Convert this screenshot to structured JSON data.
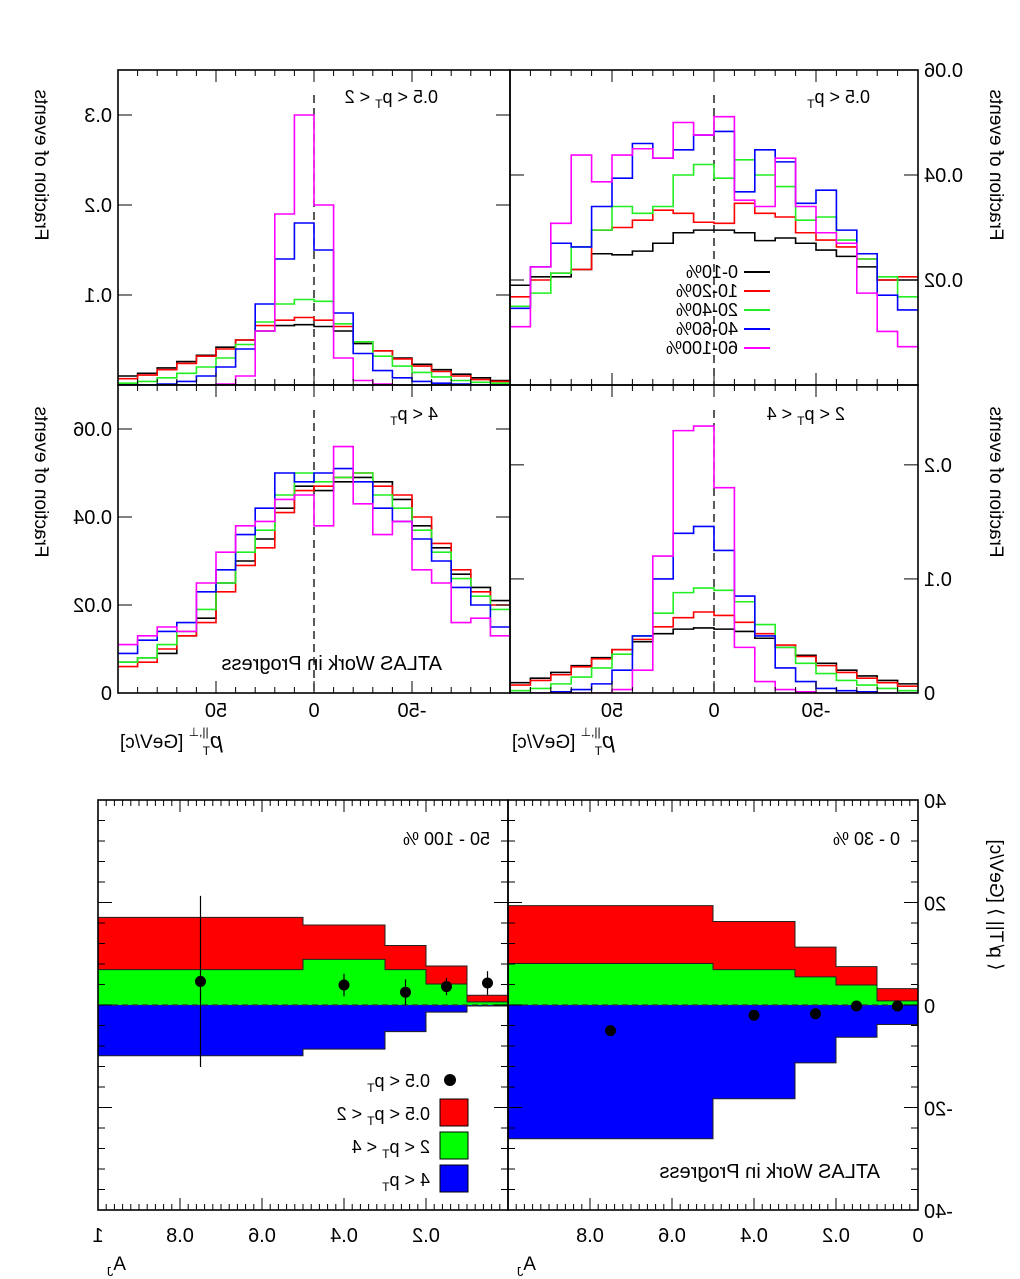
{
  "mirrored": true,
  "colors": {
    "0-10%": "#000000",
    "10-20%": "#ff0000",
    "20-40%": "#22ee22",
    "40-60%": "#0000ff",
    "60-100%": "#ff00ff",
    "band_red": "#ff0000",
    "band_green": "#00ff00",
    "band_blue": "#0000ff"
  },
  "watermark": "ATLAS Work in Progress",
  "top_xlabel": {
    "p": "p",
    "sub": "T",
    "sup": "||,⊥",
    "unit": " [GeV/c]"
  },
  "top_ylabel": "Fraction of events",
  "bottom_xlabel": {
    "a": "A",
    "sub": "J"
  },
  "bottom_ylabel": "⟨ p̸ T|| ⟩ [GeV/c]",
  "legend_top": [
    "0-10%",
    "10-20%",
    "20-40%",
    "40-60%",
    "60-100%"
  ],
  "legend_bottom": [
    {
      "marker": "point",
      "pre": "0.5 < p",
      "sub": "T",
      "post": ""
    },
    {
      "marker": "red",
      "pre": "0.5 < p",
      "sub": "T",
      "post": " < 2"
    },
    {
      "marker": "green",
      "pre": "2 < p",
      "sub": "T",
      "post": " < 4"
    },
    {
      "marker": "blue",
      "pre": "4 < p",
      "sub": "T",
      "post": ""
    }
  ],
  "chart_data": [
    {
      "type": "line",
      "style": "step",
      "label": {
        "pre": "0.5 < p",
        "sub": "T",
        "post": ""
      },
      "xlim": [
        -100,
        100
      ],
      "ylim": [
        0,
        0.06
      ],
      "xticks": [],
      "yticks": [
        "0.02",
        "0.04",
        "0.06"
      ],
      "x": [
        -95,
        -85,
        -75,
        -65,
        -55,
        -45,
        -35,
        -25,
        -15,
        -5,
        5,
        15,
        25,
        35,
        45,
        55,
        65,
        75,
        85,
        95
      ],
      "series": [
        {
          "name": "0-10%",
          "values": [
            0.02,
            0.02,
            0.0225,
            0.0245,
            0.0257,
            0.027,
            0.028,
            0.0275,
            0.029,
            0.0295,
            0.0295,
            0.029,
            0.027,
            0.0255,
            0.0248,
            0.025,
            0.022,
            0.0206,
            0.0206,
            0.019
          ]
        },
        {
          "name": "10-20%",
          "values": [
            0.0206,
            0.02,
            0.024,
            0.0263,
            0.0276,
            0.029,
            0.032,
            0.0327,
            0.0346,
            0.0308,
            0.031,
            0.0327,
            0.0333,
            0.0314,
            0.03,
            0.0295,
            0.022,
            0.0213,
            0.02,
            0.0168
          ]
        },
        {
          "name": "20-40%",
          "values": [
            0.0168,
            0.0206,
            0.024,
            0.0276,
            0.032,
            0.0314,
            0.0378,
            0.04,
            0.0429,
            0.0394,
            0.042,
            0.04,
            0.034,
            0.0327,
            0.034,
            0.0295,
            0.0263,
            0.0213,
            0.0175,
            0.015
          ]
        },
        {
          "name": "40-60%",
          "values": [
            0.0143,
            0.0171,
            0.025,
            0.0295,
            0.0371,
            0.0346,
            0.0425,
            0.0448,
            0.0368,
            0.0483,
            0.0476,
            0.0448,
            0.0432,
            0.046,
            0.0394,
            0.034,
            0.0263,
            0.027,
            0.0225,
            0.0146
          ]
        },
        {
          "name": "60-100%",
          "values": [
            0.0073,
            0.0102,
            0.0175,
            0.027,
            0.029,
            0.034,
            0.0432,
            0.034,
            0.0352,
            0.0511,
            0.0476,
            0.05,
            0.0432,
            0.045,
            0.0438,
            0.0387,
            0.0438,
            0.0308,
            0.0225,
            0.0111
          ]
        }
      ]
    },
    {
      "type": "line",
      "style": "step",
      "label": {
        "pre": "0.5 < p",
        "sub": "T",
        "post": " < 2"
      },
      "xlim": [
        -100,
        100
      ],
      "ylim": [
        0,
        0.35
      ],
      "xticks": [],
      "yticks": [
        "0.1",
        "0.2",
        "0.3"
      ],
      "x": [
        -95,
        -85,
        -75,
        -65,
        -55,
        -45,
        -35,
        -25,
        -15,
        -5,
        5,
        15,
        25,
        35,
        45,
        55,
        65,
        75,
        85,
        95
      ],
      "series": [
        {
          "name": "0-10%",
          "values": [
            0.005,
            0.008,
            0.012,
            0.017,
            0.023,
            0.03,
            0.038,
            0.046,
            0.06,
            0.065,
            0.067,
            0.066,
            0.06,
            0.05,
            0.042,
            0.033,
            0.026,
            0.019,
            0.013,
            0.01
          ]
        },
        {
          "name": "10-20%",
          "values": [
            0.004,
            0.006,
            0.01,
            0.015,
            0.021,
            0.029,
            0.038,
            0.048,
            0.065,
            0.072,
            0.075,
            0.072,
            0.066,
            0.05,
            0.04,
            0.032,
            0.024,
            0.017,
            0.011,
            0.007
          ]
        },
        {
          "name": "20-40%",
          "values": [
            0.002,
            0.003,
            0.005,
            0.009,
            0.014,
            0.021,
            0.032,
            0.048,
            0.068,
            0.093,
            0.095,
            0.09,
            0.07,
            0.045,
            0.03,
            0.02,
            0.013,
            0.008,
            0.004,
            0.002
          ]
        },
        {
          "name": "40-60%",
          "values": [
            0,
            0,
            0.001,
            0.002,
            0.004,
            0.008,
            0.016,
            0.035,
            0.08,
            0.15,
            0.18,
            0.14,
            0.09,
            0.04,
            0.02,
            0.01,
            0.004,
            0.001,
            0,
            0
          ]
        },
        {
          "name": "60-100%",
          "values": [
            0,
            0,
            0,
            0,
            0,
            0,
            0.001,
            0.005,
            0.03,
            0.2,
            0.3,
            0.19,
            0.06,
            0.01,
            0.001,
            0,
            0,
            0,
            0,
            0
          ]
        }
      ]
    },
    {
      "type": "line",
      "style": "step",
      "label": {
        "pre": "2 < p",
        "sub": "T",
        "post": " < 4"
      },
      "xlim": [
        -100,
        100
      ],
      "ylim": [
        0,
        0.27
      ],
      "xticks": [
        "-50",
        "0",
        "50"
      ],
      "yticks": [
        "0",
        "0.1",
        "0.2"
      ],
      "x": [
        -95,
        -85,
        -75,
        -65,
        -55,
        -45,
        -35,
        -25,
        -15,
        -5,
        5,
        15,
        25,
        35,
        45,
        55,
        65,
        75,
        85,
        95
      ],
      "series": [
        {
          "name": "0-10%",
          "values": [
            0.008,
            0.011,
            0.015,
            0.02,
            0.026,
            0.033,
            0.04,
            0.048,
            0.054,
            0.056,
            0.057,
            0.056,
            0.052,
            0.045,
            0.038,
            0.031,
            0.024,
            0.018,
            0.013,
            0.009
          ]
        },
        {
          "name": "10-20%",
          "values": [
            0.006,
            0.009,
            0.013,
            0.018,
            0.024,
            0.032,
            0.042,
            0.052,
            0.062,
            0.068,
            0.071,
            0.066,
            0.058,
            0.047,
            0.038,
            0.03,
            0.023,
            0.016,
            0.011,
            0.007
          ]
        },
        {
          "name": "20-40%",
          "values": [
            0.002,
            0.004,
            0.007,
            0.011,
            0.017,
            0.026,
            0.04,
            0.06,
            0.08,
            0.09,
            0.092,
            0.088,
            0.07,
            0.05,
            0.034,
            0.022,
            0.014,
            0.008,
            0.004,
            0.002
          ]
        },
        {
          "name": "40-60%",
          "values": [
            0,
            0,
            0.001,
            0.002,
            0.004,
            0.01,
            0.022,
            0.05,
            0.085,
            0.125,
            0.146,
            0.14,
            0.1,
            0.05,
            0.02,
            0.008,
            0.003,
            0.001,
            0,
            0
          ]
        },
        {
          "name": "60-100%",
          "values": [
            0,
            0,
            0,
            0,
            0,
            0.001,
            0.003,
            0.01,
            0.04,
            0.18,
            0.234,
            0.23,
            0.12,
            0.02,
            0.003,
            0,
            0,
            0,
            0,
            0
          ]
        }
      ]
    },
    {
      "type": "line",
      "style": "step",
      "label": {
        "pre": "4 < p",
        "sub": "T",
        "post": ""
      },
      "xlim": [
        -100,
        100
      ],
      "ylim": [
        0,
        0.07
      ],
      "xticks": [
        "-50",
        "0",
        "50"
      ],
      "yticks": [
        "0",
        "0.02",
        "0.04",
        "0.06"
      ],
      "x": [
        -95,
        -85,
        -75,
        -65,
        -55,
        -45,
        -35,
        -25,
        -15,
        -5,
        5,
        15,
        25,
        35,
        45,
        55,
        65,
        75,
        85,
        95
      ],
      "series": [
        {
          "name": "0-10%",
          "values": [
            0.021,
            0.024,
            0.027,
            0.033,
            0.038,
            0.044,
            0.048,
            0.049,
            0.048,
            0.046,
            0.047,
            0.042,
            0.035,
            0.03,
            0.025,
            0.017,
            0.013,
            0.009,
            0.008,
            0.007
          ]
        },
        {
          "name": "10-20%",
          "values": [
            0.02,
            0.023,
            0.028,
            0.034,
            0.04,
            0.045,
            0.047,
            0.05,
            0.049,
            0.047,
            0.046,
            0.041,
            0.033,
            0.029,
            0.023,
            0.016,
            0.013,
            0.01,
            0.007,
            0.006
          ]
        },
        {
          "name": "20-40%",
          "values": [
            0.019,
            0.022,
            0.026,
            0.032,
            0.037,
            0.042,
            0.045,
            0.05,
            0.049,
            0.048,
            0.05,
            0.045,
            0.037,
            0.032,
            0.025,
            0.019,
            0.014,
            0.011,
            0.008,
            0.007
          ]
        },
        {
          "name": "40-60%",
          "values": [
            0.015,
            0.02,
            0.024,
            0.03,
            0.035,
            0.039,
            0.042,
            0.048,
            0.051,
            0.05,
            0.048,
            0.05,
            0.042,
            0.036,
            0.028,
            0.023,
            0.016,
            0.014,
            0.012,
            0.009
          ]
        },
        {
          "name": "60-100%",
          "values": [
            0.013,
            0.017,
            0.016,
            0.025,
            0.028,
            0.039,
            0.036,
            0.043,
            0.056,
            0.038,
            0.045,
            0.044,
            0.039,
            0.038,
            0.032,
            0.025,
            0.014,
            0.015,
            0.013,
            0.011
          ]
        }
      ]
    },
    {
      "type": "bar",
      "style": "bands",
      "label": "0 - 30 %",
      "xlim": [
        0,
        1
      ],
      "ylim": [
        -40,
        40
      ],
      "xticks": [
        "0",
        "0.2",
        "0.4",
        "0.6",
        "0.8"
      ],
      "yticks": [
        "-40",
        "-20",
        "0",
        "20",
        "40"
      ],
      "bin_edges": [
        0,
        0.1,
        0.2,
        0.3,
        0.5,
        1.0
      ],
      "bands": {
        "red": [
          3.2,
          7.5,
          11.3,
          16.3,
          19.4
        ],
        "green": [
          0.8,
          3.9,
          5.5,
          6.9,
          8.1
        ],
        "blue": [
          -3.8,
          -6.3,
          -11.3,
          -18.3,
          -26.1
        ]
      },
      "points": {
        "x": [
          0.05,
          0.15,
          0.25,
          0.4,
          0.75
        ],
        "y": [
          -0.2,
          -0.2,
          -1.7,
          -2.0,
          -5.0
        ],
        "err": [
          0,
          0,
          0,
          0,
          0
        ]
      }
    },
    {
      "type": "bar",
      "style": "bands",
      "label": "50 - 100 %",
      "xlim": [
        0,
        1
      ],
      "ylim": [
        -40,
        40
      ],
      "xticks": [
        "0.2",
        "0.4",
        "0.6",
        "0.8",
        "1"
      ],
      "yticks": [],
      "bin_edges": [
        0,
        0.1,
        0.2,
        0.3,
        0.5,
        1.0
      ],
      "bands": {
        "red": [
          1.9,
          7.6,
          11.6,
          15.6,
          17.1
        ],
        "green": [
          0.6,
          4.1,
          6.9,
          8.9,
          6.9
        ],
        "blue": [
          -0.2,
          -1.4,
          -5.2,
          -8.6,
          -9.9
        ]
      },
      "points": {
        "x": [
          0.05,
          0.15,
          0.25,
          0.4,
          0.75
        ],
        "y": [
          4.3,
          3.6,
          2.5,
          3.9,
          4.6
        ],
        "err": [
          2.3,
          1.7,
          2.5,
          2.2,
          16.7
        ]
      }
    }
  ]
}
